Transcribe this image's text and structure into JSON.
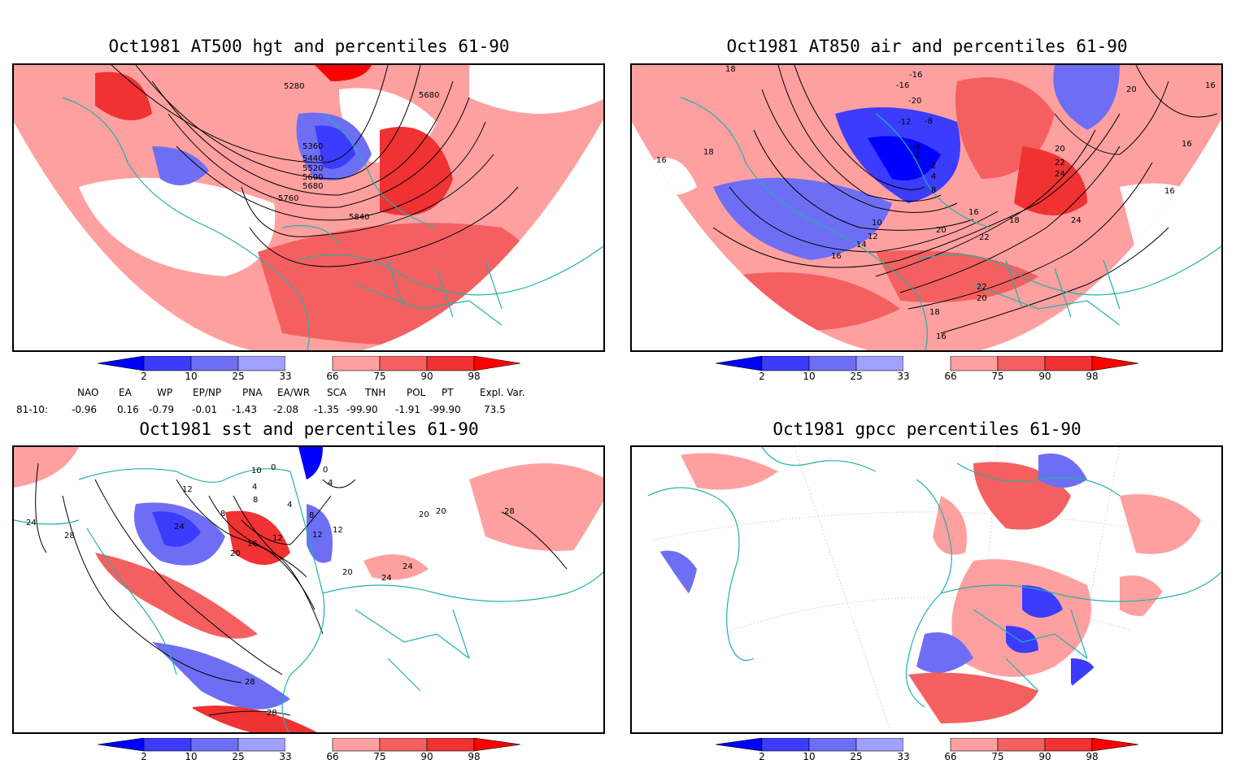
{
  "panels": [
    {
      "id": "p1",
      "title": "Oct1981 AT500 hgt and percentiles 61-90",
      "contour_labels": [
        "5280",
        "5680",
        "5360",
        "5440",
        "5520",
        "5600",
        "5680",
        "5760",
        "5840"
      ]
    },
    {
      "id": "p2",
      "title": "Oct1981 AT850 air and percentiles 61-90",
      "contour_labels": [
        "18",
        "16",
        "18",
        "-16",
        "-20",
        "-16",
        "-12",
        "-8",
        "-4",
        "-2",
        "2",
        "4",
        "8",
        "10",
        "12",
        "14",
        "16",
        "16",
        "18",
        "20",
        "22",
        "24",
        "20",
        "22",
        "24",
        "22",
        "20",
        "18",
        "16",
        "16",
        "16",
        "20",
        "16"
      ]
    },
    {
      "id": "p3",
      "title": "Oct1981 sst and percentiles 61-90",
      "contour_labels": [
        "24",
        "28",
        "12",
        "10",
        "0",
        "4",
        "0",
        "4",
        "8",
        "8",
        "4",
        "8",
        "12",
        "24",
        "16",
        "12",
        "20",
        "12",
        "20",
        "20",
        "24",
        "24",
        "28",
        "28",
        "28",
        "20"
      ]
    },
    {
      "id": "p4",
      "title": "Oct1981 gpcc percentiles 61-90",
      "contour_labels": []
    }
  ],
  "colorbar": {
    "labels": [
      "2",
      "10",
      "25",
      "33",
      "66",
      "75",
      "90",
      "98"
    ],
    "colors": [
      "#0000ff",
      "#3c3cff",
      "#6e6ef5",
      "#a0a0ff",
      "#ffa0a0",
      "#f46060",
      "#f03232",
      "#ff0000"
    ]
  },
  "indices": {
    "row_label": "81-10:",
    "headers": [
      "NAO",
      "EA",
      "WP",
      "EP/NP",
      "PNA",
      "EA/WR",
      "SCA",
      "TNH",
      "POL",
      "PT",
      "Expl. Var."
    ],
    "values": [
      "-0.96",
      "0.16",
      "-0.79",
      "-0.01",
      "-1.43",
      "-2.08",
      "-1.35",
      "-99.90",
      "-1.91",
      "-99.90",
      "73.5"
    ]
  }
}
